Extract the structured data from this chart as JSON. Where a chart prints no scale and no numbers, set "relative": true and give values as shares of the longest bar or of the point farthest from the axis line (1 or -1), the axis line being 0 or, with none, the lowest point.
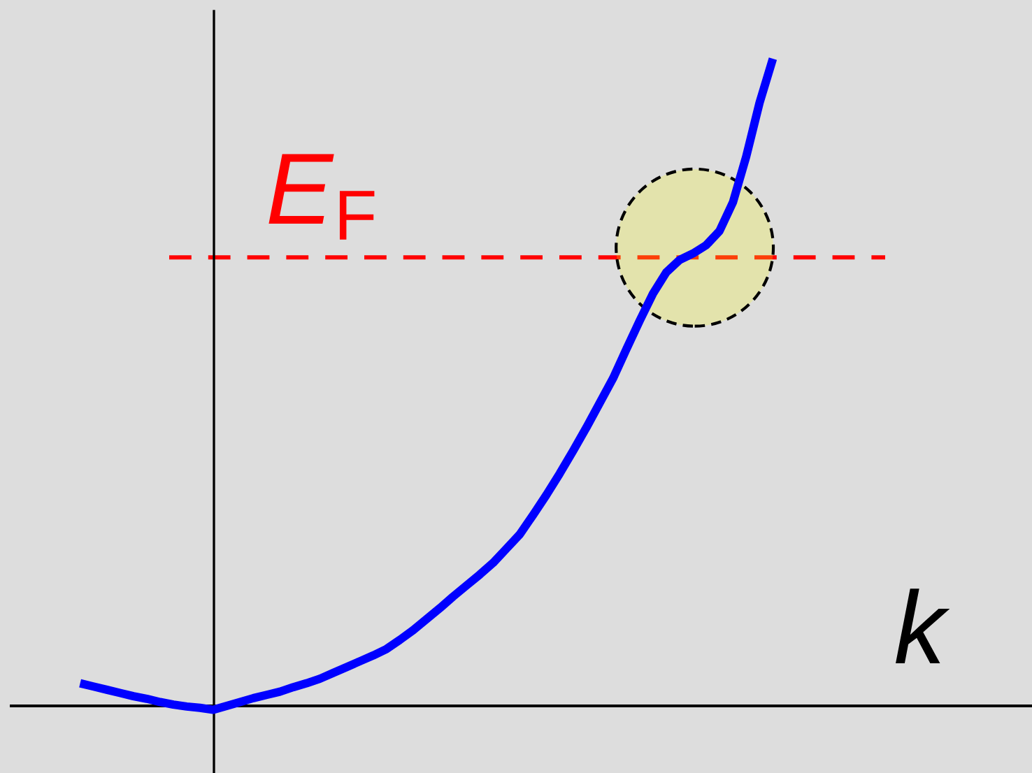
{
  "chart_data": {
    "type": "line",
    "relative": true,
    "xlabel": "k",
    "categories": [
      null,
      null,
      null,
      null,
      null,
      null,
      null,
      null,
      null,
      null,
      null,
      null,
      null,
      null,
      null,
      null,
      null,
      null,
      null,
      null,
      null,
      null,
      null,
      null,
      null,
      null,
      null,
      null,
      null,
      null,
      null,
      null,
      null,
      null,
      null,
      null,
      null,
      null,
      null,
      null,
      null,
      null,
      null,
      null,
      null,
      null,
      null,
      null,
      null,
      null,
      null,
      null,
      null
    ],
    "series": [
      {
        "color": "#0000ff",
        "line_style": "solid",
        "values": [
          0.035,
          0.03,
          0.025,
          0.02,
          0.015,
          0.011,
          0.006,
          0.002,
          -0.001,
          -0.003,
          -0.006,
          0.0,
          0.006,
          0.012,
          0.017,
          0.022,
          0.029,
          0.035,
          0.042,
          0.051,
          0.06,
          0.069,
          0.078,
          0.088,
          0.102,
          0.117,
          0.134,
          0.151,
          0.169,
          0.186,
          0.203,
          0.221,
          0.243,
          0.265,
          0.295,
          0.326,
          0.359,
          0.394,
          0.43,
          0.468,
          0.506,
          0.551,
          0.595,
          0.637,
          0.67,
          0.689,
          0.699,
          0.712,
          0.734,
          0.778,
          0.849,
          0.932,
          1.0
        ]
      }
    ],
    "ref_lines": [
      {
        "axis": "y",
        "value": 0.693,
        "label": "E$_{F}$",
        "color": "#ff0000",
        "line_style": "dashed"
      }
    ]
  }
}
